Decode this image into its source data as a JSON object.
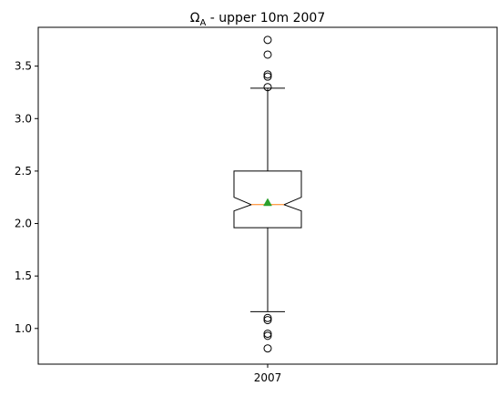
{
  "chart_data": {
    "type": "boxplot",
    "title": "Ω",
    "title_sub": "A",
    "title_rest": " - upper 10m 2007",
    "xlabel": "",
    "ylabel": "",
    "categories": [
      "2007"
    ],
    "ylim": [
      0.66,
      3.87
    ],
    "yticks": [
      1.0,
      1.5,
      2.0,
      2.5,
      3.0,
      3.5
    ],
    "ytick_labels": [
      "1.0",
      "1.5",
      "2.0",
      "2.5",
      "3.0",
      "3.5"
    ],
    "notched": true,
    "show_means": true,
    "boxes": [
      {
        "category": "2007",
        "whisker_low": 1.16,
        "q1": 1.96,
        "median": 2.18,
        "notch_low": 2.12,
        "notch_high": 2.25,
        "q3": 2.5,
        "whisker_high": 3.29,
        "mean": 2.2,
        "outliers_high": [
          3.3,
          3.4,
          3.42,
          3.61,
          3.75
        ],
        "outliers_low": [
          1.08,
          1.1,
          0.93,
          0.95,
          0.81
        ]
      }
    ],
    "colors": {
      "box": "#000000",
      "median": "#ff7f0e",
      "mean": "#2ca02c",
      "outlier": "#000000"
    },
    "grid": false
  }
}
